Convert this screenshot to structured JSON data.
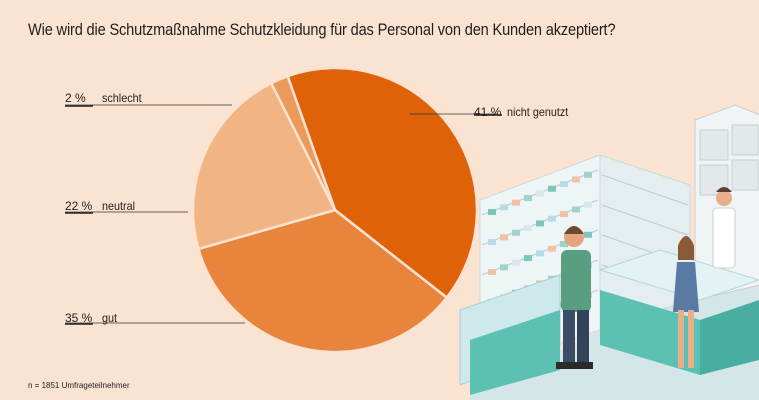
{
  "title": "Wie wird die Schutzmaßnahme Schutzkleidung für das Personal von den Kunden akzeptiert?",
  "footnote": "n = 1851 Umfrageteilnehmer",
  "chart_data": {
    "type": "pie",
    "title": "Wie wird die Schutzmaßnahme Schutzkleidung für das Personal von den Kunden akzeptiert?",
    "slices": [
      {
        "label": "nicht genutzt",
        "value": 41,
        "display": "41 %",
        "color": "#e06208"
      },
      {
        "label": "gut",
        "value": 35,
        "display": "35 %",
        "color": "#e8843c"
      },
      {
        "label": "neutral",
        "value": 22,
        "display": "22 %",
        "color": "#f2b482"
      },
      {
        "label": "schlecht",
        "value": 2,
        "display": "2 %",
        "color": "#ec9a5c"
      }
    ]
  },
  "illustration": {
    "name": "pharmacy-scene",
    "colors": {
      "shelf": "#e9f1f2",
      "counter": "#5cc0b3",
      "floor": "#cfe2e4"
    }
  }
}
